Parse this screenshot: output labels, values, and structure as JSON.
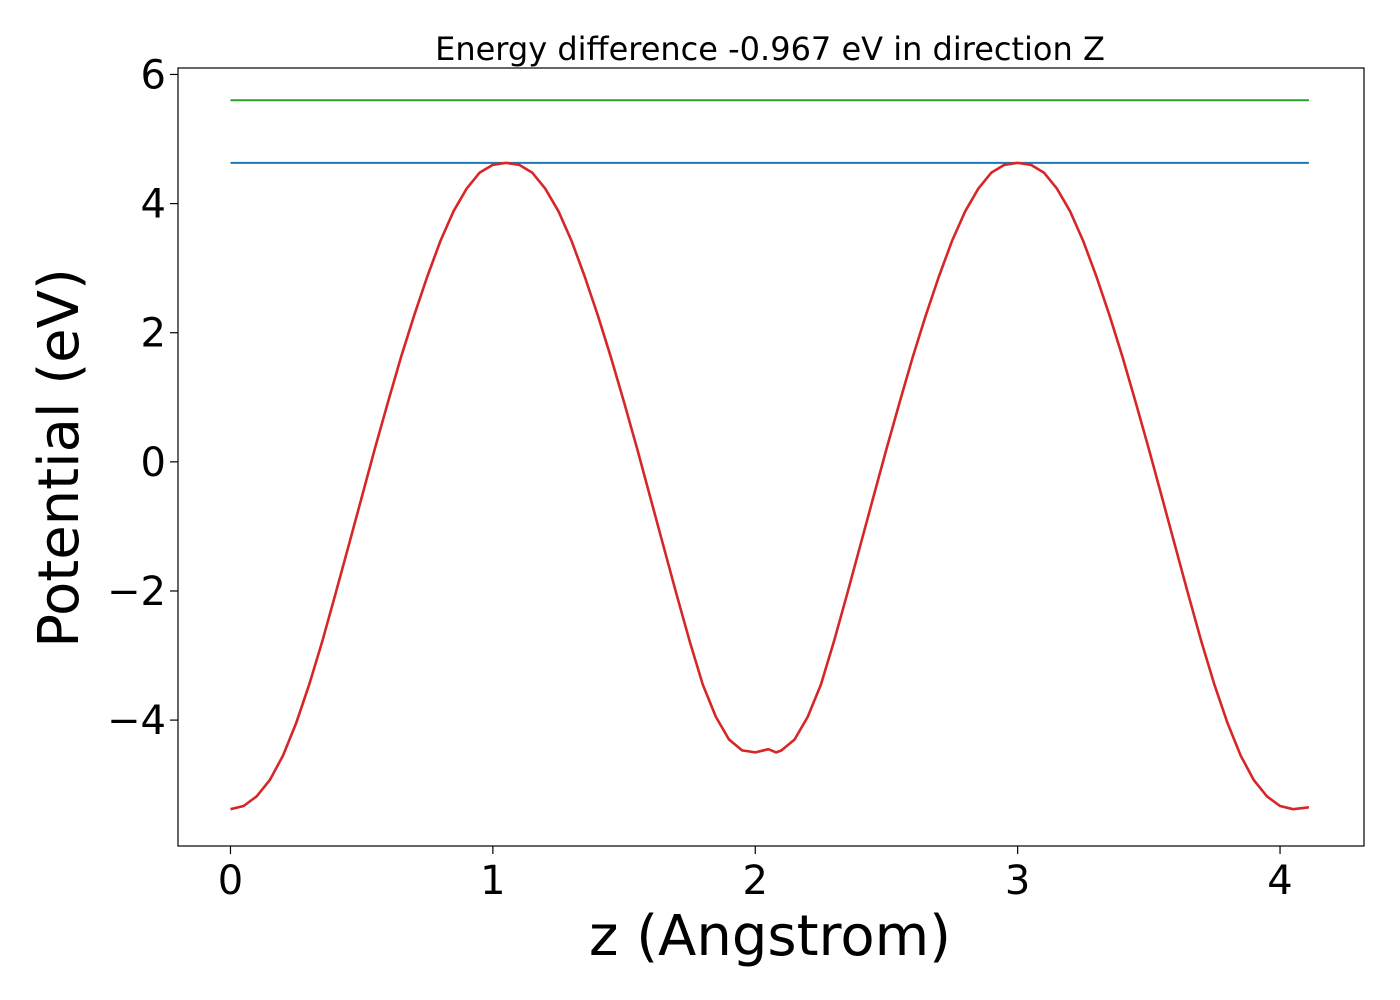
{
  "chart_data": {
    "type": "line",
    "title": "Energy difference -0.967 eV in direction Z",
    "xlabel": "z (Angstrom)",
    "ylabel": "Potential (eV)",
    "xlim": [
      -0.2,
      4.32
    ],
    "ylim": [
      -5.95,
      6.1
    ],
    "xticks": [
      0,
      1,
      2,
      3,
      4
    ],
    "xtick_labels": [
      "0",
      "1",
      "2",
      "3",
      "4"
    ],
    "yticks": [
      -4,
      -2,
      0,
      2,
      4,
      6
    ],
    "ytick_labels": [
      "−4",
      "−2",
      "0",
      "2",
      "4",
      "6"
    ],
    "grid": false,
    "series": [
      {
        "color": "#2ca02c",
        "style": "horizontal",
        "x": [
          0,
          4.11
        ],
        "y": [
          5.6,
          5.6
        ]
      },
      {
        "color": "#1f77b4",
        "style": "horizontal",
        "x": [
          0,
          4.11
        ],
        "y": [
          4.63,
          4.63
        ]
      },
      {
        "color": "#d62728",
        "x": [
          0.0,
          0.05,
          0.1,
          0.15,
          0.2,
          0.25,
          0.3,
          0.35,
          0.4,
          0.45,
          0.5,
          0.55,
          0.6,
          0.65,
          0.7,
          0.75,
          0.8,
          0.85,
          0.9,
          0.95,
          1.0,
          1.05,
          1.1,
          1.15,
          1.2,
          1.25,
          1.3,
          1.35,
          1.4,
          1.45,
          1.5,
          1.55,
          1.6,
          1.65,
          1.7,
          1.75,
          1.8,
          1.85,
          1.9,
          1.95,
          2.0,
          2.05,
          2.08,
          2.1,
          2.15,
          2.2,
          2.25,
          2.3,
          2.35,
          2.4,
          2.45,
          2.5,
          2.55,
          2.6,
          2.65,
          2.7,
          2.75,
          2.8,
          2.85,
          2.9,
          2.95,
          3.0,
          3.05,
          3.1,
          3.15,
          3.2,
          3.25,
          3.3,
          3.35,
          3.4,
          3.45,
          3.5,
          3.55,
          3.6,
          3.65,
          3.7,
          3.75,
          3.8,
          3.85,
          3.9,
          3.95,
          4.0,
          4.05,
          4.11
        ],
        "y": [
          -5.38,
          -5.33,
          -5.18,
          -4.93,
          -4.55,
          -4.05,
          -3.45,
          -2.78,
          -2.05,
          -1.3,
          -0.55,
          0.2,
          0.92,
          1.62,
          2.27,
          2.87,
          3.42,
          3.88,
          4.23,
          4.48,
          4.6,
          4.63,
          4.6,
          4.48,
          4.23,
          3.88,
          3.42,
          2.87,
          2.27,
          1.62,
          0.92,
          0.2,
          -0.55,
          -1.3,
          -2.05,
          -2.78,
          -3.45,
          -3.95,
          -4.3,
          -4.47,
          -4.5,
          -4.45,
          -4.5,
          -4.47,
          -4.3,
          -3.95,
          -3.45,
          -2.78,
          -2.05,
          -1.3,
          -0.55,
          0.2,
          0.92,
          1.62,
          2.27,
          2.87,
          3.42,
          3.88,
          4.23,
          4.48,
          4.6,
          4.63,
          4.6,
          4.48,
          4.23,
          3.88,
          3.42,
          2.87,
          2.27,
          1.62,
          0.92,
          0.2,
          -0.55,
          -1.3,
          -2.05,
          -2.78,
          -3.45,
          -4.05,
          -4.55,
          -4.93,
          -5.18,
          -5.33,
          -5.38,
          -5.35
        ]
      }
    ]
  }
}
